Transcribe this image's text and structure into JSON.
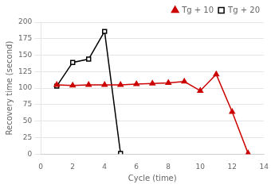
{
  "chart_data": {
    "type": "line",
    "xlabel": "Cycle (time)",
    "ylabel": "Recovery time (second)",
    "series": [
      {
        "name": "Tg + 10",
        "color": "#cc0000",
        "marker": "triangle",
        "x": [
          1,
          2,
          3,
          4,
          5,
          6,
          7,
          8,
          9,
          10,
          11,
          12,
          13
        ],
        "values": [
          105,
          104,
          105,
          105,
          105,
          106,
          107,
          108,
          110,
          96,
          121,
          64,
          1
        ]
      },
      {
        "name": "Tg + 20",
        "color": "#000000",
        "marker": "square",
        "x": [
          1,
          2,
          3,
          4,
          5
        ],
        "values": [
          103,
          139,
          144,
          186,
          1
        ]
      }
    ],
    "xlim": [
      0,
      14
    ],
    "ylim": [
      0,
      200
    ],
    "xticks": [
      0,
      2,
      4,
      6,
      8,
      10,
      12,
      14
    ],
    "yticks": [
      0,
      25,
      50,
      75,
      100,
      125,
      150,
      175,
      200
    ],
    "grid": "y",
    "legend": "upper right"
  }
}
